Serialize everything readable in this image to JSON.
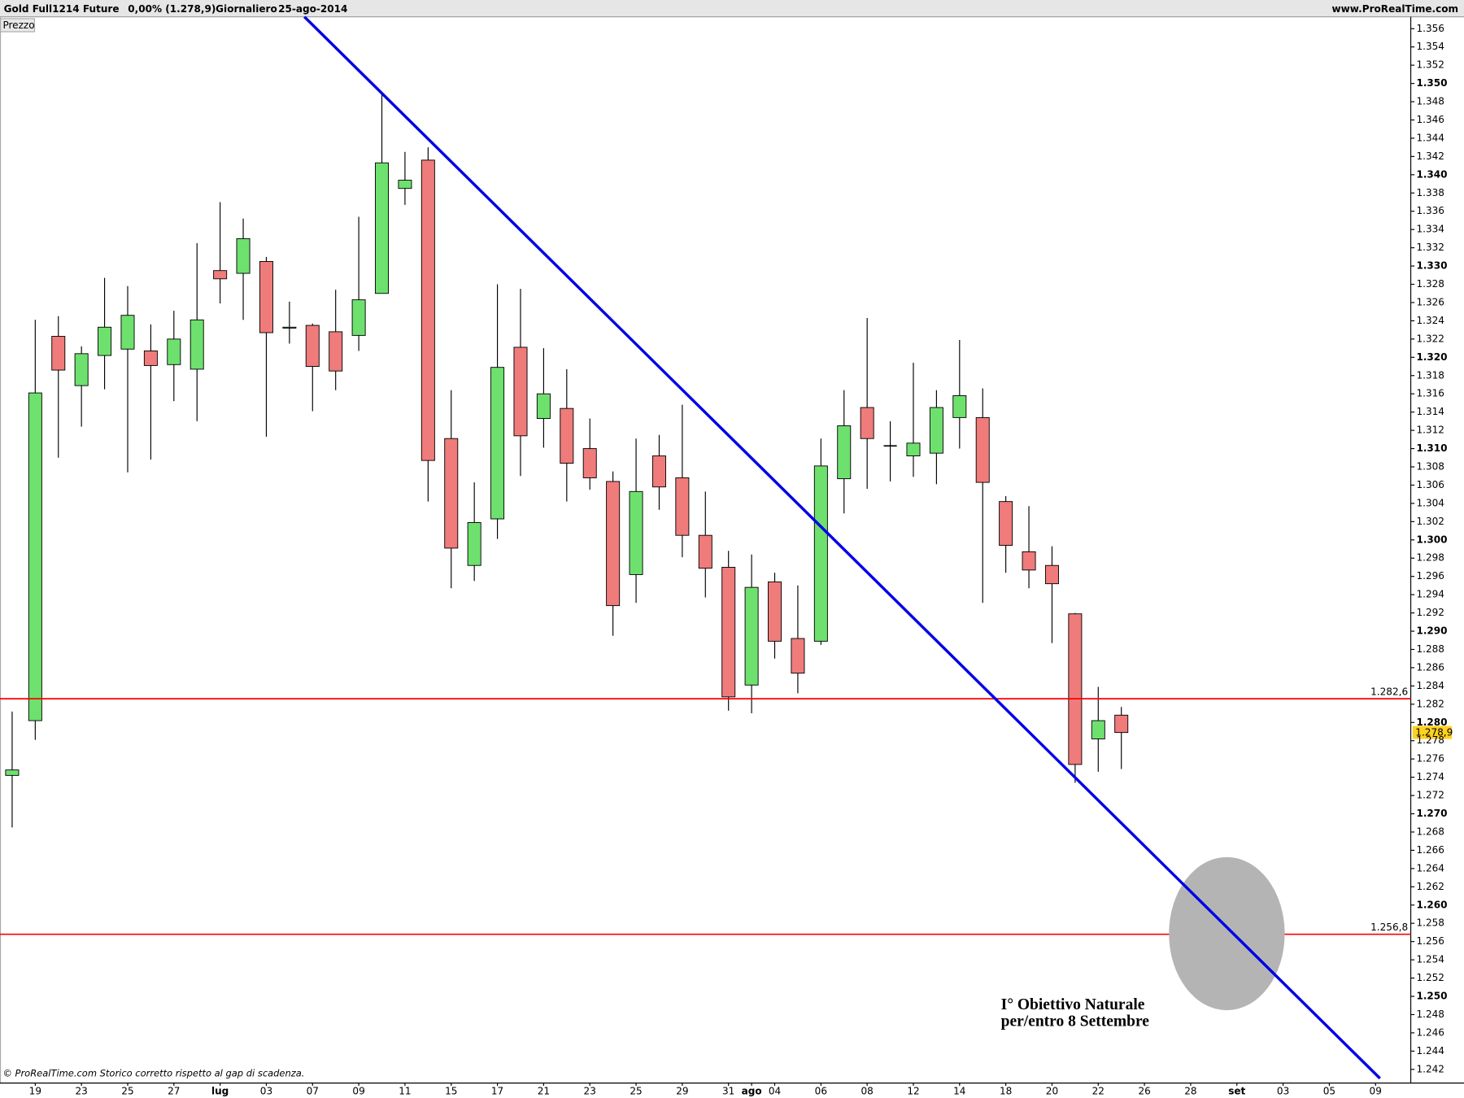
{
  "chart_data": {
    "type": "candlestick",
    "title": "Gold Full1214 Future",
    "subtitle": "0,00% (1.278,9)",
    "period": "Giornaliero",
    "date": "25-ago-2014",
    "source": "www.ProRealTime.com",
    "panel_label": "Prezzo",
    "footer": "© ProRealTime.com  Storico corretto rispetto al gap di scadenza.",
    "annotation": [
      "I° Obiettivo Naturale",
      "per/entro 8 Settembre"
    ],
    "up_color": "#6ee06e",
    "down_color": "#ef7b7b",
    "categories": [
      null,
      "19",
      null,
      "23",
      null,
      "25",
      null,
      "27",
      null,
      "lug",
      null,
      "03",
      null,
      "07",
      null,
      "09",
      null,
      "11",
      null,
      "15",
      null,
      "17",
      null,
      "21",
      null,
      "23",
      null,
      "25",
      null,
      "29",
      null,
      "31",
      "ago",
      "04",
      null,
      "06",
      null,
      "08",
      null,
      "12",
      null,
      "14",
      null,
      "18",
      null,
      "20",
      null,
      "22",
      null,
      "26",
      null,
      "28",
      null,
      "set",
      null,
      "03",
      null,
      "05",
      null,
      "09"
    ],
    "open": [
      1274.2,
      1280.2,
      1322.3,
      1316.9,
      1320.2,
      1320.9,
      1320.7,
      1319.2,
      1318.7,
      1329.5,
      1329.2,
      1330.5,
      1323.2,
      1323.5,
      1322.8,
      1322.4,
      1327,
      1338.5,
      1341.6,
      1311.1,
      1297.2,
      1302.3,
      1321.1,
      1313.3,
      1314.4,
      1310,
      1306.4,
      1296.2,
      1309.2,
      1306.8,
      1300.5,
      1297,
      1284.1,
      1295.4,
      1289.2,
      1288.9,
      1306.7,
      1314.5,
      1310.3,
      1309.2,
      1309.5,
      1313.4,
      1313.4,
      1304.2,
      1298.7,
      1297.2,
      1291.9,
      1278.2,
      1280.8,
      null,
      null,
      null,
      null,
      null,
      null,
      null,
      null,
      null,
      null,
      null
    ],
    "high": [
      1281.2,
      1324.1,
      1324.5,
      1321.2,
      1328.7,
      1327.8,
      1323.6,
      1325.1,
      1332.5,
      1337,
      1335.2,
      1331,
      1326.1,
      1323.7,
      1327.4,
      1335.4,
      1348.9,
      1342.5,
      1343,
      1316.4,
      1306.3,
      1328,
      1327.5,
      1321,
      1318.7,
      1313.3,
      1307.5,
      1311.1,
      1311.5,
      1314.8,
      1305.3,
      1298.8,
      1298.4,
      1296.4,
      1295,
      1311.1,
      1316.4,
      1324.3,
      1313,
      1319.4,
      1316.4,
      1321.9,
      1316.6,
      1304.8,
      1303.7,
      1299.3,
      1292,
      1283.9,
      1281.7,
      null,
      null,
      null,
      null,
      null,
      null,
      null,
      null,
      null,
      null,
      null
    ],
    "low": [
      1268.5,
      1278.1,
      1309,
      1312.4,
      1316.5,
      1307.4,
      1308.8,
      1315.2,
      1313,
      1325.9,
      1324.1,
      1311.3,
      1321.5,
      1314.1,
      1316.4,
      1320.7,
      1327,
      1336.7,
      1304.2,
      1294.7,
      1295.5,
      1300.1,
      1307,
      1310.1,
      1304.2,
      1305.5,
      1289.5,
      1293.1,
      1303.3,
      1298.1,
      1293.7,
      1281.3,
      1281,
      1287,
      1283.2,
      1288.5,
      1302.9,
      1305.6,
      1306.4,
      1306.9,
      1306.1,
      1310,
      1293.1,
      1296.4,
      1294.7,
      1288.7,
      1273.4,
      1274.6,
      1274.9,
      null,
      null,
      null,
      null,
      null,
      null,
      null,
      null,
      null,
      null,
      null
    ],
    "close": [
      1274.8,
      1316.1,
      1318.6,
      1320.4,
      1323.3,
      1324.6,
      1319.1,
      1322,
      1324.1,
      1328.6,
      1333,
      1322.7,
      1323.3,
      1319,
      1318.5,
      1326.3,
      1341.3,
      1339.4,
      1308.7,
      1299.1,
      1301.9,
      1318.9,
      1311.4,
      1316,
      1308.4,
      1306.8,
      1292.8,
      1305.3,
      1305.8,
      1300.5,
      1296.9,
      1282.8,
      1294.8,
      1288.9,
      1285.4,
      1308.1,
      1312.5,
      1311.1,
      1310.3,
      1310.6,
      1314.5,
      1315.8,
      1306.3,
      1299.4,
      1296.7,
      1295.2,
      1275.4,
      1280.2,
      1278.9,
      null,
      null,
      null,
      null,
      null,
      null,
      null,
      null,
      null,
      null,
      null
    ],
    "ylim": [
      1240.5,
      1357.3
    ],
    "yticks": [
      {
        "value": 1242,
        "label": "1.242"
      },
      {
        "value": 1244,
        "label": "1.244"
      },
      {
        "value": 1246,
        "label": "1.246"
      },
      {
        "value": 1248,
        "label": "1.248"
      },
      {
        "value": 1250,
        "label": "1.250"
      },
      {
        "value": 1252,
        "label": "1.252"
      },
      {
        "value": 1254,
        "label": "1.254"
      },
      {
        "value": 1256,
        "label": "1.256"
      },
      {
        "value": 1258,
        "label": "1.258"
      },
      {
        "value": 1260,
        "label": "1.260"
      },
      {
        "value": 1262,
        "label": "1.262"
      },
      {
        "value": 1264,
        "label": "1.264"
      },
      {
        "value": 1266,
        "label": "1.266"
      },
      {
        "value": 1268,
        "label": "1.268"
      },
      {
        "value": 1270,
        "label": "1.270"
      },
      {
        "value": 1272,
        "label": "1.272"
      },
      {
        "value": 1274,
        "label": "1.274"
      },
      {
        "value": 1276,
        "label": "1.276"
      },
      {
        "value": 1278,
        "label": "1.278"
      },
      {
        "value": 1280,
        "label": "1.280"
      },
      {
        "value": 1282,
        "label": "1.282"
      },
      {
        "value": 1284,
        "label": "1.284"
      },
      {
        "value": 1286,
        "label": "1.286"
      },
      {
        "value": 1288,
        "label": "1.288"
      },
      {
        "value": 1290,
        "label": "1.290"
      },
      {
        "value": 1292,
        "label": "1.292"
      },
      {
        "value": 1294,
        "label": "1.294"
      },
      {
        "value": 1296,
        "label": "1.296"
      },
      {
        "value": 1298,
        "label": "1.298"
      },
      {
        "value": 1300,
        "label": "1.300"
      },
      {
        "value": 1302,
        "label": "1.302"
      },
      {
        "value": 1304,
        "label": "1.304"
      },
      {
        "value": 1306,
        "label": "1.306"
      },
      {
        "value": 1308,
        "label": "1.308"
      },
      {
        "value": 1310,
        "label": "1.310"
      },
      {
        "value": 1312,
        "label": "1.312"
      },
      {
        "value": 1314,
        "label": "1.314"
      },
      {
        "value": 1316,
        "label": "1.316"
      },
      {
        "value": 1318,
        "label": "1.318"
      },
      {
        "value": 1320,
        "label": "1.320"
      },
      {
        "value": 1322,
        "label": "1.322"
      },
      {
        "value": 1324,
        "label": "1.324"
      },
      {
        "value": 1326,
        "label": "1.326"
      },
      {
        "value": 1328,
        "label": "1.328"
      },
      {
        "value": 1330,
        "label": "1.330"
      },
      {
        "value": 1332,
        "label": "1.332"
      },
      {
        "value": 1334,
        "label": "1.334"
      },
      {
        "value": 1336,
        "label": "1.336"
      },
      {
        "value": 1338,
        "label": "1.338"
      },
      {
        "value": 1340,
        "label": "1.340"
      },
      {
        "value": 1342,
        "label": "1.342"
      },
      {
        "value": 1344,
        "label": "1.344"
      },
      {
        "value": 1346,
        "label": "1.346"
      },
      {
        "value": 1348,
        "label": "1.348"
      },
      {
        "value": 1350,
        "label": "1.350"
      },
      {
        "value": 1352,
        "label": "1.352"
      },
      {
        "value": 1354,
        "label": "1.354"
      },
      {
        "value": 1356,
        "label": "1.356"
      }
    ],
    "hlines": [
      {
        "value": 1282.6,
        "label": "1.282,6",
        "color": "#ff0000"
      },
      {
        "value": 1256.8,
        "label": "1.256,8",
        "color": "#ff0000"
      }
    ],
    "last_price": {
      "value": 1278.9,
      "label": "1.278,9",
      "color": "#ffd21f"
    },
    "grid": false
  }
}
